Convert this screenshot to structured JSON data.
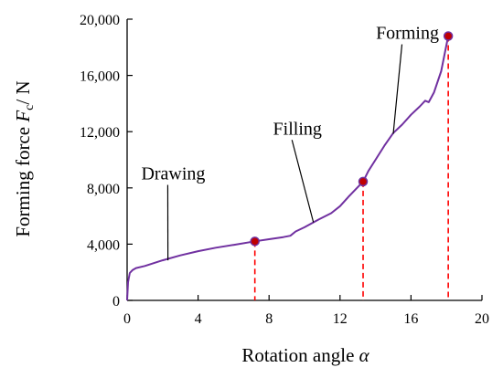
{
  "chart_data": {
    "type": "line",
    "xlabel_text": "Rotation angle ",
    "xlabel_symbol": "α",
    "ylabel_text": "Forming force ",
    "ylabel_symbol": "F",
    "ylabel_subscript": "c",
    "ylabel_unit": "/ N",
    "xlim": [
      0,
      20
    ],
    "ylim": [
      0,
      20000
    ],
    "x_ticks": [
      0,
      4,
      8,
      12,
      16,
      20
    ],
    "x_tick_labels": [
      "0",
      "4",
      "8",
      "12",
      "16",
      "20"
    ],
    "y_ticks": [
      0,
      4000,
      8000,
      12000,
      16000,
      20000
    ],
    "y_tick_labels": [
      "0",
      "4,000",
      "8,000",
      "12,000",
      "16,000",
      "20,000"
    ],
    "grid": false,
    "line_color": "#7030A0",
    "marker_color": "#C00000",
    "dashed_color": "#FF0000",
    "series": [
      {
        "x": [
          0,
          0.05,
          0.15,
          0.3,
          0.5,
          1.0,
          2.0,
          3.0,
          4.0,
          5.0,
          6.0,
          7.2,
          8.0,
          8.8,
          9.2,
          9.5,
          10.0,
          10.8,
          11.5,
          12.0,
          12.5,
          13.3,
          13.6,
          14.0,
          14.5,
          15.0,
          15.5,
          16.0,
          16.5,
          16.8,
          17.0,
          17.3,
          17.7,
          18.1
        ],
        "y": [
          0,
          1300,
          1950,
          2150,
          2300,
          2450,
          2850,
          3200,
          3500,
          3750,
          3950,
          4200,
          4350,
          4500,
          4600,
          4900,
          5200,
          5750,
          6200,
          6700,
          7400,
          8450,
          9200,
          10000,
          11000,
          11900,
          12500,
          13200,
          13800,
          14200,
          14100,
          14800,
          16300,
          18800
        ]
      }
    ],
    "key_points": [
      {
        "x": 7.2,
        "y": 4200
      },
      {
        "x": 13.3,
        "y": 8450
      },
      {
        "x": 18.1,
        "y": 18800
      }
    ],
    "annotations": [
      {
        "text": "Drawing",
        "label_x": 2.6,
        "label_y": 8600,
        "target_x": 2.3,
        "target_y": 2850
      },
      {
        "text": "Filling",
        "label_x": 9.6,
        "label_y": 11800,
        "target_x": 10.5,
        "target_y": 5550
      },
      {
        "text": "Forming",
        "label_x": 15.8,
        "label_y": 18600,
        "target_x": 15.0,
        "target_y": 11850
      }
    ]
  }
}
